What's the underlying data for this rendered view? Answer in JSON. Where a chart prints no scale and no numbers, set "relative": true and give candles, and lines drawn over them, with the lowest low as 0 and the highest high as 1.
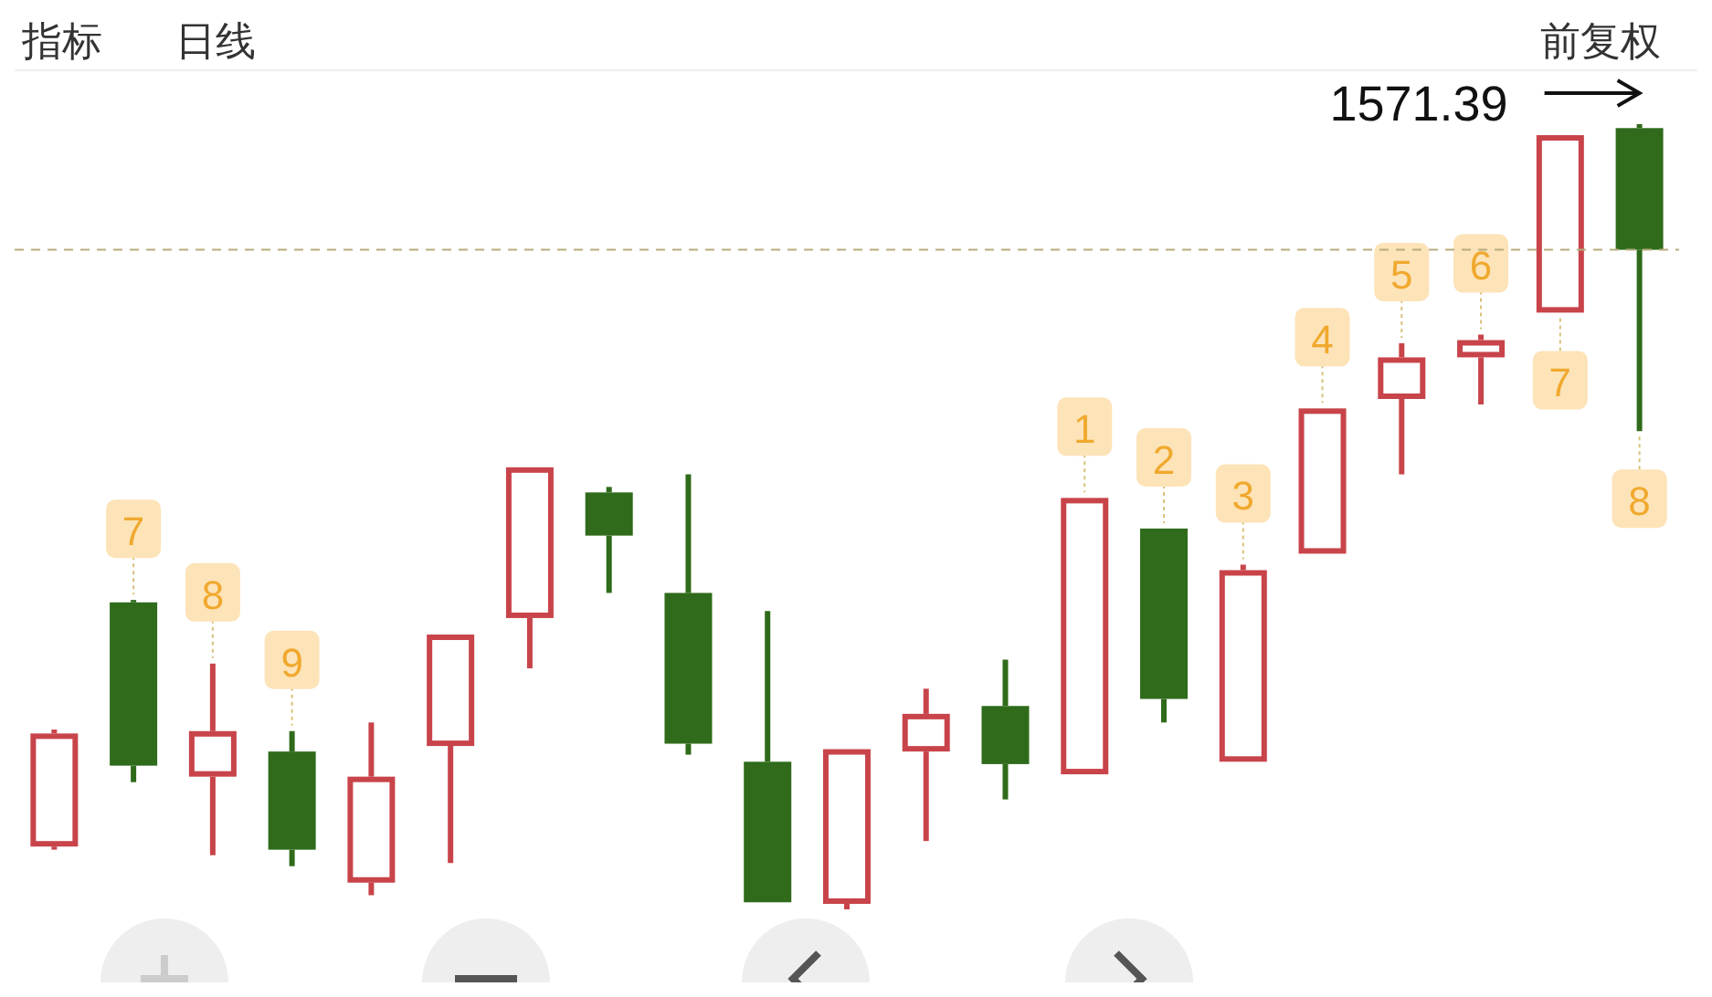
{
  "chart_data": {
    "type": "candlestick",
    "relative": true,
    "categories": [
      null,
      null,
      null,
      null,
      null,
      null,
      null,
      null,
      null,
      null,
      null,
      null,
      null,
      null,
      null,
      null,
      null,
      null,
      null,
      null,
      null
    ],
    "ohlc": [
      [
        0.08,
        0.229,
        0.076,
        0.224
      ],
      [
        0.391,
        0.394,
        0.162,
        0.183
      ],
      [
        0.169,
        0.313,
        0.069,
        0.227
      ],
      [
        0.201,
        0.227,
        0.055,
        0.076
      ],
      [
        0.034,
        0.238,
        0.018,
        0.169
      ],
      [
        0.208,
        0.35,
        0.059,
        0.35
      ],
      [
        0.371,
        0.563,
        0.307,
        0.563
      ],
      [
        0.531,
        0.538,
        0.403,
        0.476
      ],
      [
        0.403,
        0.554,
        0.197,
        0.211
      ],
      [
        0.188,
        0.38,
        0.009,
        0.009
      ],
      [
        0.007,
        0.204,
        0,
        0.204
      ],
      [
        0.201,
        0.281,
        0.087,
        0.249
      ],
      [
        0.259,
        0.318,
        0.14,
        0.185
      ],
      [
        0.172,
        0.524,
        0.172,
        0.524
      ],
      [
        0.485,
        0.485,
        0.238,
        0.268
      ],
      [
        0.188,
        0.439,
        0.188,
        0.432
      ],
      [
        0.453,
        0.638,
        0.453,
        0.638
      ],
      [
        0.65,
        0.721,
        0.554,
        0.703
      ],
      [
        0.703,
        0.732,
        0.643,
        0.725
      ],
      [
        0.76,
        0.986,
        0.76,
        0.986
      ],
      [
        0.995,
        1,
        0.609,
        0.84
      ]
    ],
    "colors": [
      "#c8444a",
      "#2f6b1a",
      "#c8444a",
      "#2f6b1a",
      "#c8444a",
      "#c8444a",
      "#c8444a",
      "#2f6b1a",
      "#2f6b1a",
      "#2f6b1a",
      "#c8444a",
      "#c8444a",
      "#2f6b1a",
      "#c8444a",
      "#2f6b1a",
      "#c8444a",
      "#c8444a",
      "#c8444a",
      "#c8444a",
      "#c8444a",
      "#2f6b1a"
    ],
    "value_labels": [
      null,
      "7",
      "8",
      "9",
      null,
      null,
      null,
      null,
      null,
      null,
      null,
      null,
      null,
      "1",
      "2",
      "3",
      "4",
      "5",
      "6",
      "7",
      "8"
    ],
    "ref_lines": [
      {
        "axis": "y",
        "value": 0.84,
        "color": "#b8ac7e",
        "line_style": "dashed"
      }
    ],
    "annotations": [
      "1571.39",
      "指标",
      "日线",
      "前复权"
    ]
  }
}
